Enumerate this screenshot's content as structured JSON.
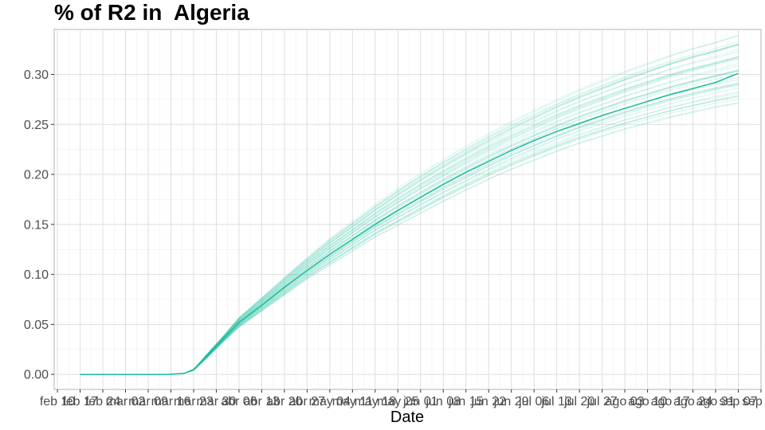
{
  "chart_data": {
    "type": "line",
    "title": "% of R2 in  Algeria",
    "xlabel": "Date",
    "ylabel": "",
    "ylim": [
      -0.015,
      0.345
    ],
    "grid": true,
    "y_ticks": [
      0.0,
      0.05,
      0.1,
      0.15,
      0.2,
      0.25,
      0.3
    ],
    "y_tick_labels": [
      "0.00",
      "0.05",
      "0.10",
      "0.15",
      "0.20",
      "0.25",
      "0.30"
    ],
    "x_ticks": [
      "2020-02-10",
      "2020-02-17",
      "2020-02-24",
      "2020-03-02",
      "2020-03-09",
      "2020-03-16",
      "2020-03-23",
      "2020-03-30",
      "2020-04-06",
      "2020-04-13",
      "2020-04-20",
      "2020-04-27",
      "2020-05-04",
      "2020-05-11",
      "2020-05-18",
      "2020-05-25",
      "2020-06-01",
      "2020-06-08",
      "2020-06-15",
      "2020-06-22",
      "2020-06-29",
      "2020-07-06",
      "2020-07-13",
      "2020-07-20",
      "2020-07-27",
      "2020-08-03",
      "2020-08-10",
      "2020-08-17",
      "2020-08-24",
      "2020-08-31",
      "2020-09-07",
      "2020-09-14"
    ],
    "x_tick_labels": [
      "feb 10",
      "feb 17",
      "feb 24",
      "mar 02",
      "mar 09",
      "mar 16",
      "mar 23",
      "mar 30",
      "abr 06",
      "abr 13",
      "abr 20",
      "abr 27",
      "may 04",
      "may 11",
      "may 18",
      "may 25",
      "jun 01",
      "jun 08",
      "jun 15",
      "jun 22",
      "jun 29",
      "jul 06",
      "jul 13",
      "jul 20",
      "jul 27",
      "ago 03",
      "ago 10",
      "ago 17",
      "ago 24",
      "ago 31",
      "sep 07",
      "sep 14"
    ],
    "xlim": [
      "2020-02-09",
      "2020-09-14"
    ],
    "series": [
      {
        "color": "#1abc9c",
        "x": [
          "2020-02-17",
          "2020-03-01",
          "2020-03-15",
          "2020-03-20",
          "2020-03-23",
          "2020-03-27",
          "2020-04-01",
          "2020-04-06",
          "2020-04-13",
          "2020-04-20",
          "2020-04-27",
          "2020-05-04",
          "2020-05-11",
          "2020-05-18",
          "2020-05-25",
          "2020-06-01",
          "2020-06-08",
          "2020-06-15",
          "2020-06-22",
          "2020-06-29",
          "2020-07-06",
          "2020-07-13",
          "2020-07-20",
          "2020-07-27",
          "2020-08-03",
          "2020-08-10",
          "2020-08-17",
          "2020-08-24",
          "2020-08-31",
          "2020-09-07"
        ],
        "values": [
          0.0,
          0.0,
          0.0,
          0.001,
          0.005,
          0.018,
          0.035,
          0.052,
          0.069,
          0.087,
          0.104,
          0.12,
          0.135,
          0.15,
          0.164,
          0.177,
          0.19,
          0.202,
          0.213,
          0.224,
          0.234,
          0.243,
          0.251,
          0.259,
          0.266,
          0.273,
          0.28,
          0.286,
          0.292,
          0.301
        ]
      }
    ],
    "uncertainty_band": {
      "color": "#1abc9c",
      "n_lines": 40,
      "upper": [
        0.0,
        0.0,
        0.0,
        0.001,
        0.005,
        0.02,
        0.038,
        0.057,
        0.077,
        0.097,
        0.117,
        0.136,
        0.153,
        0.17,
        0.186,
        0.201,
        0.215,
        0.228,
        0.241,
        0.253,
        0.264,
        0.275,
        0.285,
        0.294,
        0.303,
        0.311,
        0.319,
        0.326,
        0.332,
        0.339
      ],
      "lower": [
        0.0,
        0.0,
        0.0,
        0.001,
        0.004,
        0.016,
        0.032,
        0.047,
        0.063,
        0.079,
        0.095,
        0.109,
        0.123,
        0.137,
        0.149,
        0.161,
        0.173,
        0.184,
        0.195,
        0.205,
        0.214,
        0.223,
        0.231,
        0.238,
        0.245,
        0.251,
        0.257,
        0.262,
        0.267,
        0.271
      ]
    }
  }
}
